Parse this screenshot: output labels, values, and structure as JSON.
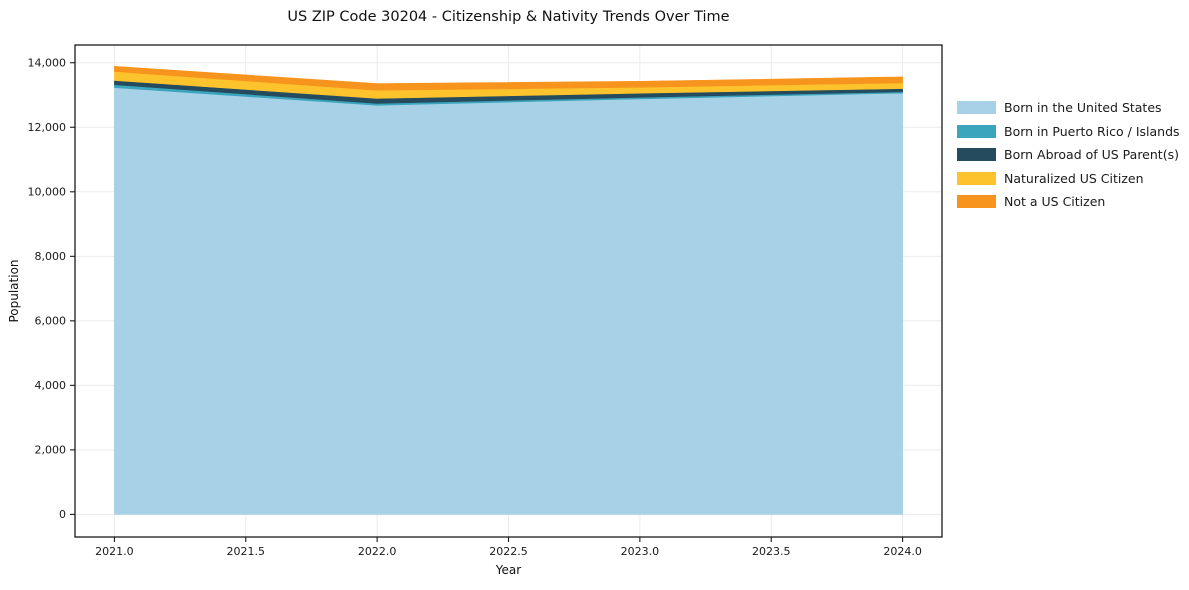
{
  "chart_data": {
    "type": "area",
    "stacked": true,
    "title": "US ZIP Code 30204 - Citizenship & Nativity Trends Over Time",
    "xlabel": "Year",
    "ylabel": "Population",
    "x": [
      2021,
      2022,
      2023,
      2024
    ],
    "series": [
      {
        "name": "Born in the United States",
        "color": "#a6d1e6",
        "values": [
          13230,
          12680,
          12880,
          13060
        ]
      },
      {
        "name": "Born in Puerto Rico / Islands",
        "color": "#3aa5bd",
        "values": [
          90,
          60,
          50,
          40
        ]
      },
      {
        "name": "Born Abroad of US Parent(s)",
        "color": "#254b5e",
        "values": [
          130,
          155,
          125,
          100
        ]
      },
      {
        "name": "Naturalized US Citizen",
        "color": "#fcc32c",
        "values": [
          280,
          250,
          185,
          175
        ]
      },
      {
        "name": "Not a US Citizen",
        "color": "#f7941e",
        "values": [
          160,
          210,
          185,
          185
        ]
      }
    ],
    "stack_totals": [
      13890,
      13355,
      13425,
      13560
    ],
    "xticks": {
      "values": [
        2021.0,
        2021.5,
        2022.0,
        2022.5,
        2023.0,
        2023.5,
        2024.0
      ],
      "labels": [
        "2021.0",
        "2021.5",
        "2022.0",
        "2022.5",
        "2023.0",
        "2023.5",
        "2024.0"
      ]
    },
    "yticks": {
      "values": [
        0,
        2000,
        4000,
        6000,
        8000,
        10000,
        12000,
        14000
      ],
      "labels": [
        "0",
        "2,000",
        "4,000",
        "6,000",
        "8,000",
        "10,000",
        "12,000",
        "14,000"
      ]
    },
    "xlim": [
      2020.85,
      2024.15
    ],
    "ylim": [
      -700,
      14550
    ],
    "grid": true,
    "legend_position": "center-right-outside"
  }
}
